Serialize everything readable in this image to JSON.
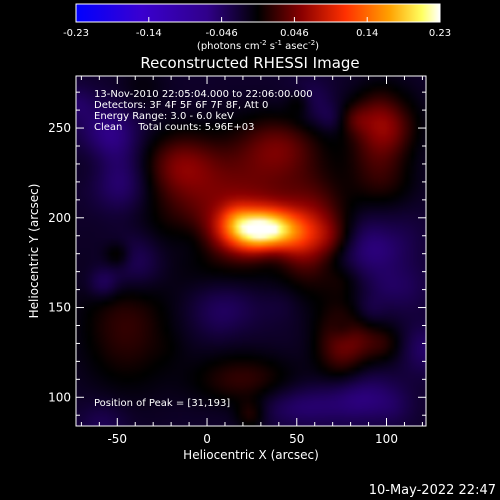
{
  "footer": {
    "timestamp": "10-May-2022 22:47"
  },
  "colorbar": {
    "ticks": [
      "-0.23",
      "-0.14",
      "-0.046",
      "0.046",
      "0.14",
      "0.23"
    ],
    "unit_parts": [
      "(photons cm",
      "-2",
      " s",
      "-1",
      " asec",
      "-2",
      ")"
    ]
  },
  "chart_data": {
    "type": "heatmap",
    "title": "Reconstructed RHESSI Image",
    "xlabel": "Heliocentric X (arcsec)",
    "ylabel": "Heliocentric Y (arcsec)",
    "xlim": [
      -73,
      122
    ],
    "ylim": [
      84,
      279
    ],
    "xticks": [
      -50,
      0,
      50,
      100
    ],
    "yticks": [
      100,
      150,
      200,
      250
    ],
    "value_range": [
      -0.23,
      0.23
    ],
    "grid": false,
    "colors": {
      "low": "#0000ff",
      "mid": "#000000",
      "high": "#ffffff",
      "background": "#000000"
    },
    "annotations": [
      "13-Nov-2010 22:05:04.000 to 22:06:00.000",
      "Detectors: 3F 4F 5F 6F 7F 8F, Att 0",
      "Energy Range: 3.0 - 6.0 keV",
      "Clean     Total counts: 5.96E+03"
    ],
    "peak_label": "Position of Peak = [31,193]",
    "peak": {
      "x": 31,
      "y": 193,
      "value": 0.23
    },
    "blobs": [
      {
        "x": 31,
        "y": 193,
        "sx": 14,
        "sy": 8,
        "amp": 0.23
      },
      {
        "x": 15,
        "y": 205,
        "sx": 30,
        "sy": 24,
        "amp": 0.07
      },
      {
        "x": 60,
        "y": 190,
        "sx": 12,
        "sy": 20,
        "amp": 0.06
      },
      {
        "x": -15,
        "y": 230,
        "sx": 14,
        "sy": 12,
        "amp": 0.05
      },
      {
        "x": 40,
        "y": 240,
        "sx": 16,
        "sy": 12,
        "amp": 0.05
      },
      {
        "x": 75,
        "y": 130,
        "sx": 10,
        "sy": 15,
        "amp": 0.06
      },
      {
        "x": 95,
        "y": 230,
        "sx": 12,
        "sy": 20,
        "amp": 0.04
      },
      {
        "x": -45,
        "y": 140,
        "sx": 18,
        "sy": 25,
        "amp": 0.04
      },
      {
        "x": 20,
        "y": 110,
        "sx": 20,
        "sy": 10,
        "amp": 0.04
      },
      {
        "x": -55,
        "y": 245,
        "sx": 12,
        "sy": 12,
        "amp": -0.05
      },
      {
        "x": 95,
        "y": 185,
        "sx": 14,
        "sy": 14,
        "amp": -0.05
      },
      {
        "x": 85,
        "y": 100,
        "sx": 14,
        "sy": 10,
        "amp": -0.04
      },
      {
        "x": -40,
        "y": 175,
        "sx": 12,
        "sy": 12,
        "amp": -0.04
      },
      {
        "x": 10,
        "y": 150,
        "sx": 14,
        "sy": 10,
        "amp": -0.03
      },
      {
        "x": 50,
        "y": 95,
        "sx": 16,
        "sy": 8,
        "amp": -0.03
      }
    ]
  }
}
